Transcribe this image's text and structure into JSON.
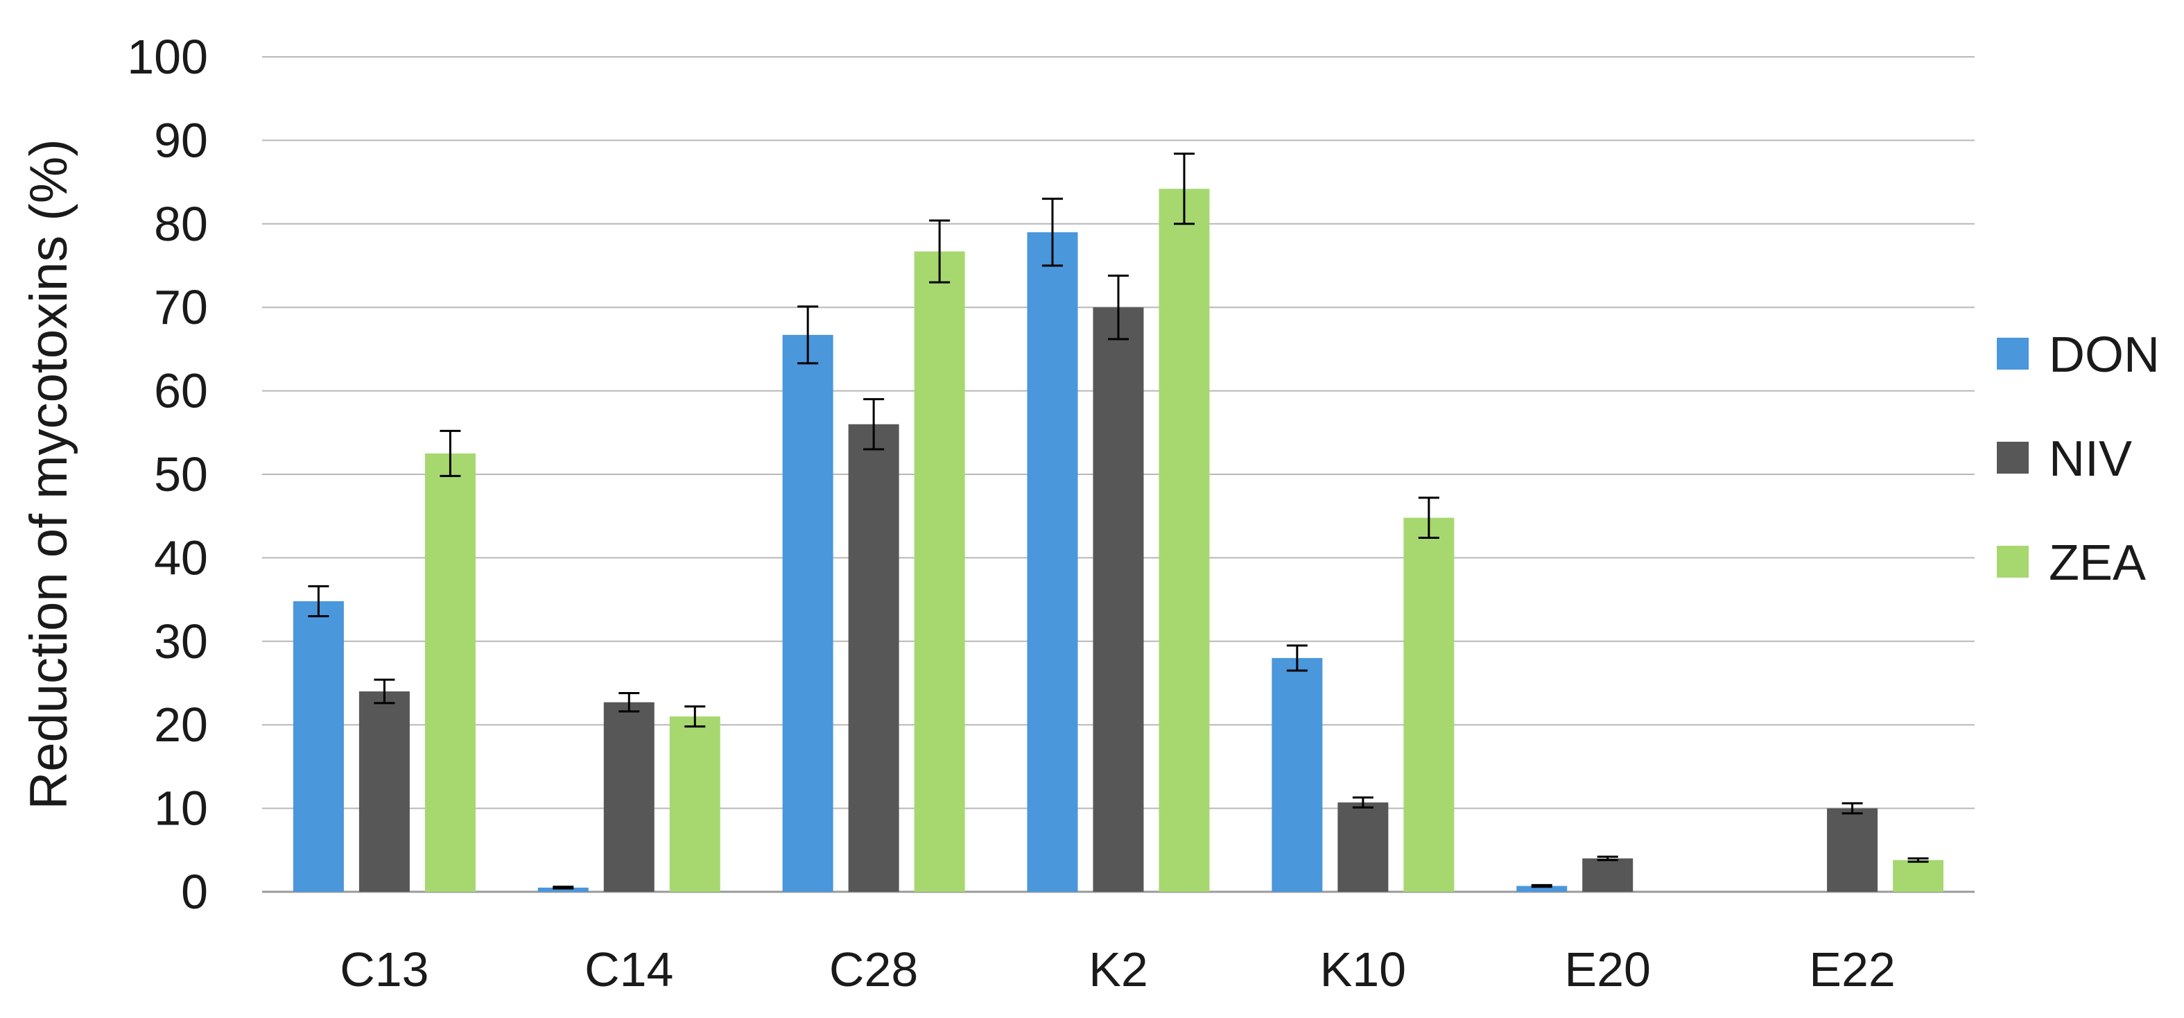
{
  "chart_data": {
    "type": "bar",
    "title": "",
    "xlabel": "",
    "ylabel": "Reduction of mycotoxins (%)",
    "ylim": [
      0,
      100
    ],
    "yticks": [
      0,
      10,
      20,
      30,
      40,
      50,
      60,
      70,
      80,
      90,
      100
    ],
    "grid": true,
    "legend_position": "right",
    "categories": [
      "C13",
      "C14",
      "C28",
      "K2",
      "K10",
      "E20",
      "E22"
    ],
    "series": [
      {
        "name": "DON",
        "color": "#4a97dc",
        "values": [
          34.8,
          0.5,
          66.7,
          79.0,
          28.0,
          0.7,
          0
        ],
        "errors": [
          1.8,
          0.1,
          3.4,
          4.0,
          1.5,
          0.1,
          0
        ]
      },
      {
        "name": "NIV",
        "color": "#575757",
        "values": [
          24.0,
          22.7,
          56.0,
          70.0,
          10.7,
          4.0,
          10.0
        ],
        "errors": [
          1.4,
          1.1,
          3.0,
          3.8,
          0.6,
          0.2,
          0.6
        ]
      },
      {
        "name": "ZEA",
        "color": "#a7d870",
        "values": [
          52.5,
          21.0,
          76.7,
          84.2,
          44.8,
          0,
          3.8
        ],
        "errors": [
          2.7,
          1.2,
          3.7,
          4.2,
          2.4,
          0,
          0.2
        ]
      }
    ]
  }
}
